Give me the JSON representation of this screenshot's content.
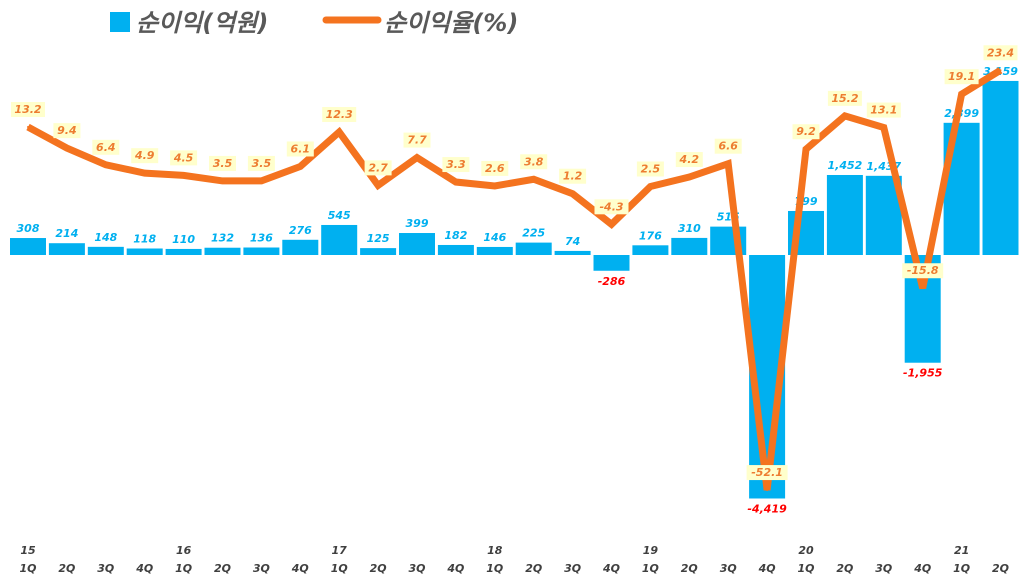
{
  "chart_data": {
    "type": "bar+line",
    "legend": {
      "position": "top"
    },
    "categories": [
      {
        "year": "15",
        "q": "1Q"
      },
      {
        "year": "",
        "q": "2Q"
      },
      {
        "year": "",
        "q": "3Q"
      },
      {
        "year": "",
        "q": "4Q"
      },
      {
        "year": "16",
        "q": "1Q"
      },
      {
        "year": "",
        "q": "2Q"
      },
      {
        "year": "",
        "q": "3Q"
      },
      {
        "year": "",
        "q": "4Q"
      },
      {
        "year": "17",
        "q": "1Q"
      },
      {
        "year": "",
        "q": "2Q"
      },
      {
        "year": "",
        "q": "3Q"
      },
      {
        "year": "",
        "q": "4Q"
      },
      {
        "year": "18",
        "q": "1Q"
      },
      {
        "year": "",
        "q": "2Q"
      },
      {
        "year": "",
        "q": "3Q"
      },
      {
        "year": "",
        "q": "4Q"
      },
      {
        "year": "19",
        "q": "1Q"
      },
      {
        "year": "",
        "q": "2Q"
      },
      {
        "year": "",
        "q": "3Q"
      },
      {
        "year": "",
        "q": "4Q"
      },
      {
        "year": "20",
        "q": "1Q"
      },
      {
        "year": "",
        "q": "2Q"
      },
      {
        "year": "",
        "q": "3Q"
      },
      {
        "year": "",
        "q": "4Q"
      },
      {
        "year": "21",
        "q": "1Q"
      },
      {
        "year": "",
        "q": "2Q"
      }
    ],
    "series": [
      {
        "name": "순이익(억원)",
        "type": "bar",
        "color": "#00B0F0",
        "negative_label_color": "#FF0000",
        "values": [
          308,
          214,
          148,
          118,
          110,
          132,
          136,
          276,
          545,
          125,
          399,
          182,
          146,
          225,
          74,
          -286,
          176,
          310,
          515,
          -4419,
          799,
          1452,
          1437,
          -1955,
          2399,
          3159
        ],
        "labels": [
          "308",
          "214",
          "148",
          "118",
          "110",
          "132",
          "136",
          "276",
          "545",
          "125",
          "399",
          "182",
          "146",
          "225",
          "74",
          "-286",
          "176",
          "310",
          "515",
          "-4,419",
          "799",
          "1,452",
          "1,437",
          "-1,955",
          "2,399",
          "3,159"
        ]
      },
      {
        "name": "순이익율(%)",
        "type": "line",
        "color": "#F4731F",
        "label_color": "#ED7D31",
        "label_bg": "#FFFFCC",
        "values": [
          13.2,
          9.4,
          6.4,
          4.9,
          4.5,
          3.5,
          3.5,
          6.1,
          12.3,
          2.7,
          7.7,
          3.3,
          2.6,
          3.8,
          1.2,
          -4.3,
          2.5,
          4.2,
          6.6,
          -52.1,
          9.2,
          15.2,
          13.1,
          -15.8,
          19.1,
          23.4
        ],
        "labels": [
          "13.2",
          "9.4",
          "6.4",
          "4.9",
          "4.5",
          "3.5",
          "3.5",
          "6.1",
          "12.3",
          "2.7",
          "7.7",
          "3.3",
          "2.6",
          "3.8",
          "1.2",
          "-4.3",
          "2.5",
          "4.2",
          "6.6",
          "-52.1",
          "9.2",
          "15.2",
          "13.1",
          "-15.8",
          "19.1",
          "23.4"
        ]
      }
    ]
  }
}
